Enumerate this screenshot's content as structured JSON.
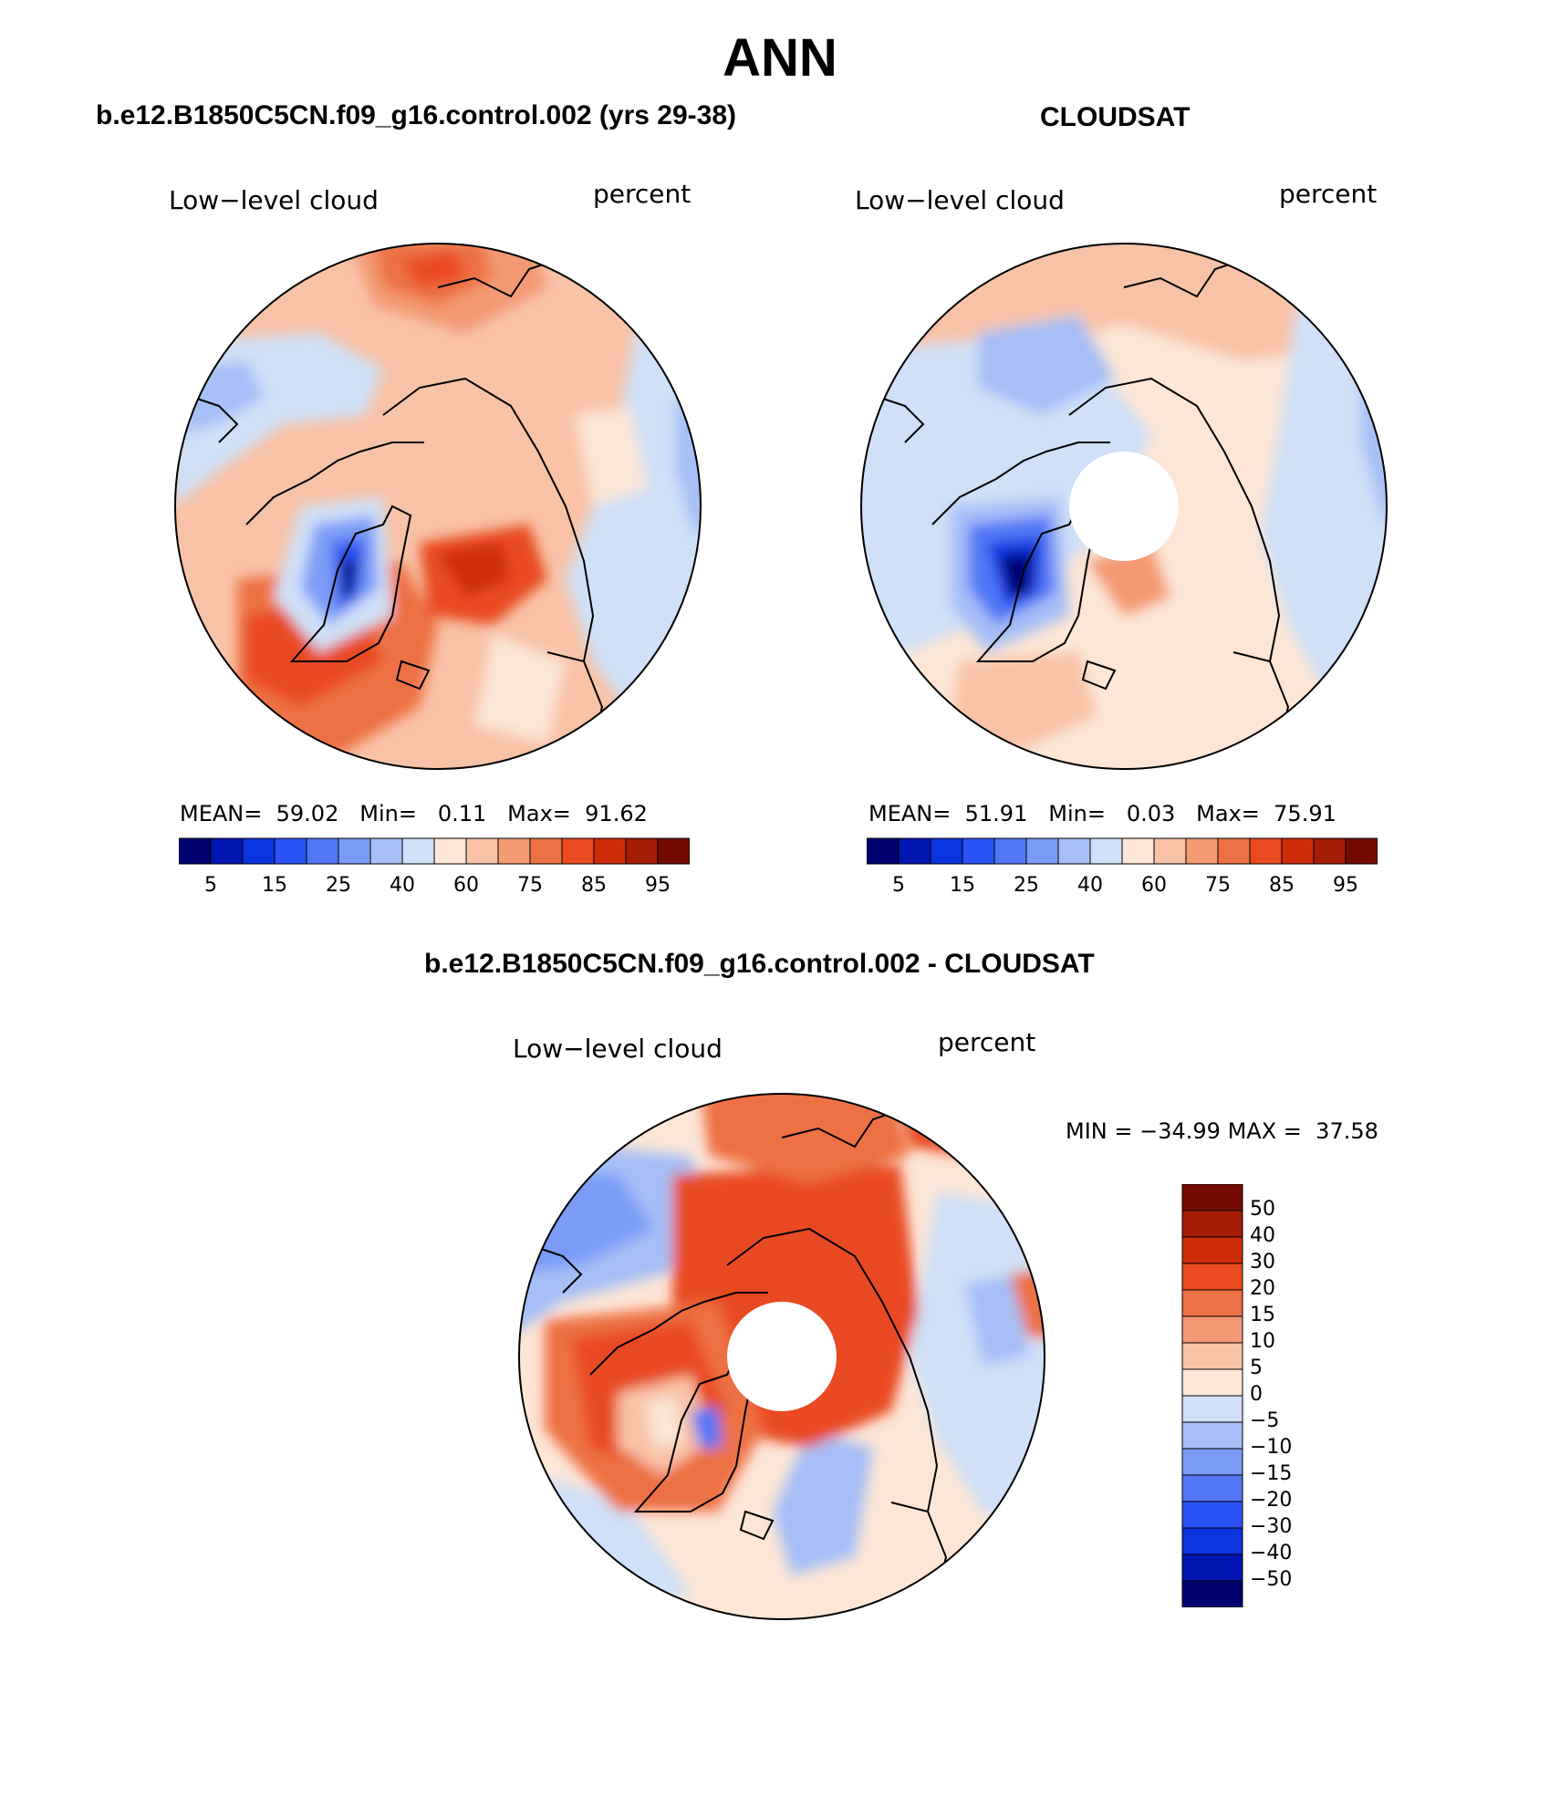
{
  "figure": {
    "title": "ANN"
  },
  "colors": {
    "scale": [
      "#000070",
      "#0216b4",
      "#0c34df",
      "#2a52f5",
      "#5177f7",
      "#7a9cf6",
      "#a6bff6",
      "#cfe0f8",
      "#fde6d6",
      "#f8c2a6",
      "#f39a73",
      "#ee7145",
      "#e94a20",
      "#cf2d0a",
      "#a51b04",
      "#730b01"
    ],
    "outline": "#000000"
  },
  "panels": [
    {
      "id": "model",
      "title": "b.e12.B1850C5CN.f09_g16.control.002 (yrs 29-38)",
      "variable": "Low−level cloud",
      "units": "percent",
      "stats": {
        "mean_label": "MEAN=",
        "mean": "59.02",
        "min_label": "Min=",
        "min": "0.11",
        "max_label": "Max=",
        "max": "91.62"
      },
      "colorbar_ticks": [
        "5",
        "15",
        "25",
        "40",
        "60",
        "75",
        "85",
        "95"
      ],
      "center_mask": false
    },
    {
      "id": "obs",
      "title": "CLOUDSAT",
      "variable": "Low−level cloud",
      "units": "percent",
      "stats": {
        "mean_label": "MEAN=",
        "mean": "51.91",
        "min_label": "Min=",
        "min": "0.03",
        "max_label": "Max=",
        "max": "75.91"
      },
      "colorbar_ticks": [
        "5",
        "15",
        "25",
        "40",
        "60",
        "75",
        "85",
        "95"
      ],
      "center_mask": true
    },
    {
      "id": "diff",
      "title": "b.e12.B1850C5CN.f09_g16.control.002 - CLOUDSAT",
      "variable": "Low−level cloud",
      "units": "percent",
      "stats": {
        "min_label": "MIN =",
        "min": "−34.99",
        "max_label": "MAX =",
        "max": "37.58"
      },
      "colorbar_ticks": [
        "50",
        "40",
        "30",
        "20",
        "15",
        "10",
        "5",
        "0",
        "−5",
        "−10",
        "−15",
        "−20",
        "−30",
        "−40",
        "−50"
      ],
      "center_mask": true
    }
  ]
}
